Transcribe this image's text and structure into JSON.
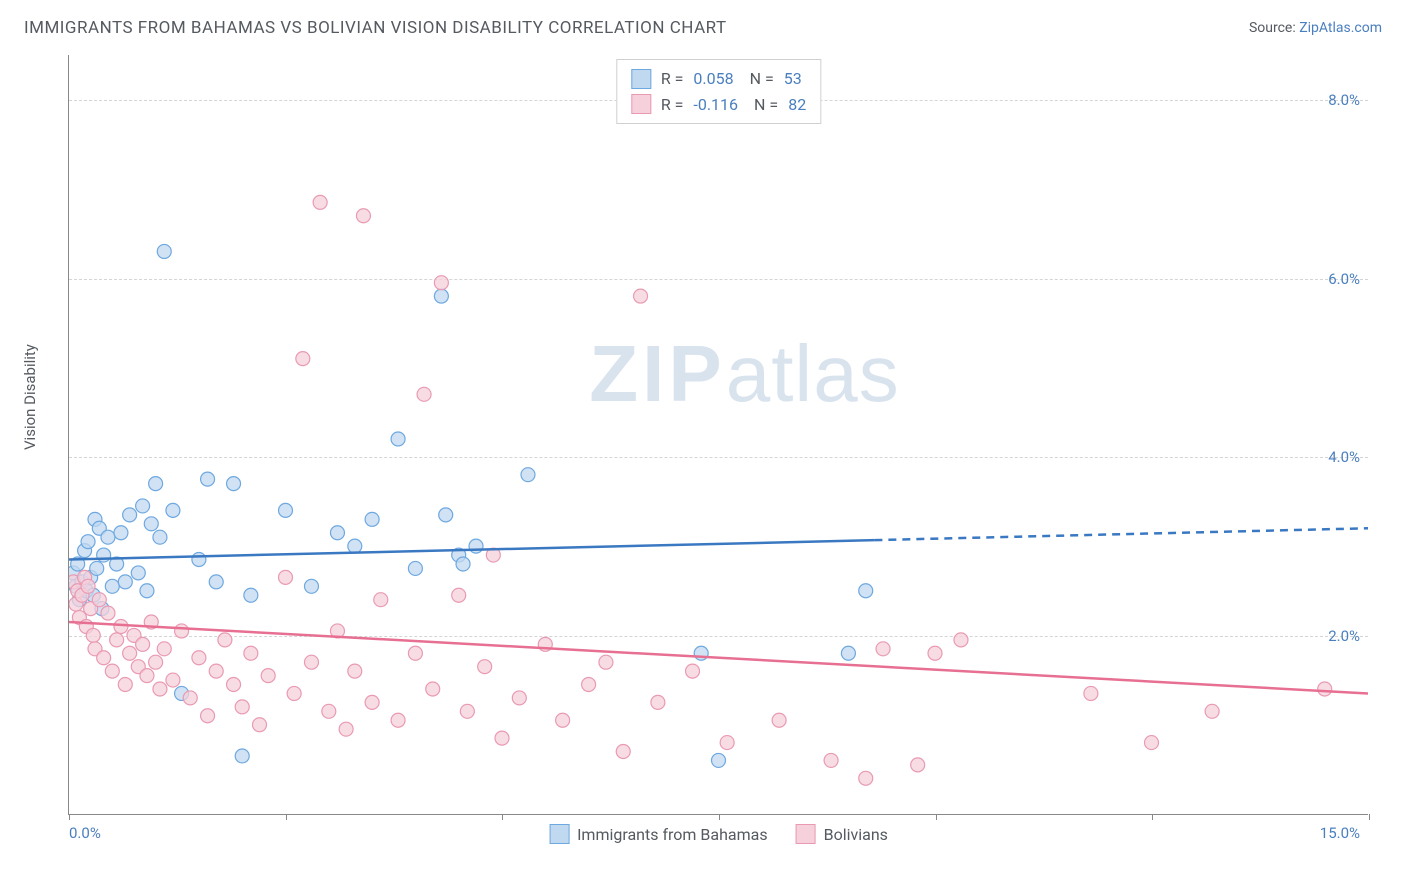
{
  "header": {
    "title": "IMMIGRANTS FROM BAHAMAS VS BOLIVIAN VISION DISABILITY CORRELATION CHART",
    "source_prefix": "Source: ",
    "source_link": "ZipAtlas.com"
  },
  "chart": {
    "ylabel": "Vision Disability",
    "xlim": [
      0,
      15
    ],
    "ylim": [
      0,
      8.5
    ],
    "xlabel_min": "0.0%",
    "xlabel_max": "15.0%",
    "yticks": [
      {
        "value": 2.0,
        "label": "2.0%"
      },
      {
        "value": 4.0,
        "label": "4.0%"
      },
      {
        "value": 6.0,
        "label": "6.0%"
      },
      {
        "value": 8.0,
        "label": "8.0%"
      }
    ],
    "xtick_values": [
      0,
      2.5,
      5,
      7.5,
      10,
      12.5,
      15
    ],
    "background_color": "#ffffff",
    "grid_color": "#d5d5d5",
    "axis_color": "#888888",
    "watermark_zip": "ZIP",
    "watermark_atlas": "atlas",
    "watermark_color": "#d9e3ee",
    "series": [
      {
        "name": "Immigrants from Bahamas",
        "short": "bahamas",
        "fill_color": "#c0d8f0",
        "stroke_color": "#6ea8e0",
        "line_color": "#3a78c2",
        "r_value": "0.058",
        "n_value": "53",
        "trend": {
          "y_start": 2.85,
          "y_end": 3.2,
          "solid_until_x": 9.3
        },
        "points": [
          [
            0.05,
            2.7
          ],
          [
            0.08,
            2.55
          ],
          [
            0.1,
            2.8
          ],
          [
            0.12,
            2.4
          ],
          [
            0.15,
            2.6
          ],
          [
            0.18,
            2.95
          ],
          [
            0.2,
            2.5
          ],
          [
            0.22,
            3.05
          ],
          [
            0.25,
            2.65
          ],
          [
            0.28,
            2.45
          ],
          [
            0.3,
            3.3
          ],
          [
            0.32,
            2.75
          ],
          [
            0.35,
            3.2
          ],
          [
            0.38,
            2.3
          ],
          [
            0.4,
            2.9
          ],
          [
            0.45,
            3.1
          ],
          [
            0.5,
            2.55
          ],
          [
            0.55,
            2.8
          ],
          [
            0.6,
            3.15
          ],
          [
            0.65,
            2.6
          ],
          [
            0.7,
            3.35
          ],
          [
            0.8,
            2.7
          ],
          [
            0.85,
            3.45
          ],
          [
            0.9,
            2.5
          ],
          [
            0.95,
            3.25
          ],
          [
            1.0,
            3.7
          ],
          [
            1.05,
            3.1
          ],
          [
            1.1,
            6.3
          ],
          [
            1.2,
            3.4
          ],
          [
            1.3,
            1.35
          ],
          [
            1.5,
            2.85
          ],
          [
            1.6,
            3.75
          ],
          [
            1.7,
            2.6
          ],
          [
            1.9,
            3.7
          ],
          [
            2.0,
            0.65
          ],
          [
            2.1,
            2.45
          ],
          [
            2.5,
            3.4
          ],
          [
            2.8,
            2.55
          ],
          [
            3.1,
            3.15
          ],
          [
            3.3,
            3.0
          ],
          [
            3.5,
            3.3
          ],
          [
            3.8,
            4.2
          ],
          [
            4.0,
            2.75
          ],
          [
            4.3,
            5.8
          ],
          [
            4.35,
            3.35
          ],
          [
            4.5,
            2.9
          ],
          [
            4.55,
            2.8
          ],
          [
            4.7,
            3.0
          ],
          [
            5.3,
            3.8
          ],
          [
            7.3,
            1.8
          ],
          [
            7.5,
            0.6
          ],
          [
            9.0,
            1.8
          ],
          [
            9.2,
            2.5
          ]
        ]
      },
      {
        "name": "Bolivians",
        "short": "bolivians",
        "fill_color": "#f6d0db",
        "stroke_color": "#e99ab2",
        "line_color": "#e76f92",
        "r_value": "-0.116",
        "n_value": "82",
        "trend": {
          "y_start": 2.15,
          "y_end": 1.35,
          "solid_until_x": 15.0
        },
        "points": [
          [
            0.05,
            2.6
          ],
          [
            0.08,
            2.35
          ],
          [
            0.1,
            2.5
          ],
          [
            0.12,
            2.2
          ],
          [
            0.15,
            2.45
          ],
          [
            0.18,
            2.65
          ],
          [
            0.2,
            2.1
          ],
          [
            0.22,
            2.55
          ],
          [
            0.25,
            2.3
          ],
          [
            0.28,
            2.0
          ],
          [
            0.3,
            1.85
          ],
          [
            0.35,
            2.4
          ],
          [
            0.4,
            1.75
          ],
          [
            0.45,
            2.25
          ],
          [
            0.5,
            1.6
          ],
          [
            0.55,
            1.95
          ],
          [
            0.6,
            2.1
          ],
          [
            0.65,
            1.45
          ],
          [
            0.7,
            1.8
          ],
          [
            0.75,
            2.0
          ],
          [
            0.8,
            1.65
          ],
          [
            0.85,
            1.9
          ],
          [
            0.9,
            1.55
          ],
          [
            0.95,
            2.15
          ],
          [
            1.0,
            1.7
          ],
          [
            1.05,
            1.4
          ],
          [
            1.1,
            1.85
          ],
          [
            1.2,
            1.5
          ],
          [
            1.3,
            2.05
          ],
          [
            1.4,
            1.3
          ],
          [
            1.5,
            1.75
          ],
          [
            1.6,
            1.1
          ],
          [
            1.7,
            1.6
          ],
          [
            1.8,
            1.95
          ],
          [
            1.9,
            1.45
          ],
          [
            2.0,
            1.2
          ],
          [
            2.1,
            1.8
          ],
          [
            2.2,
            1.0
          ],
          [
            2.3,
            1.55
          ],
          [
            2.5,
            2.65
          ],
          [
            2.6,
            1.35
          ],
          [
            2.7,
            5.1
          ],
          [
            2.8,
            1.7
          ],
          [
            2.9,
            6.85
          ],
          [
            3.0,
            1.15
          ],
          [
            3.1,
            2.05
          ],
          [
            3.2,
            0.95
          ],
          [
            3.3,
            1.6
          ],
          [
            3.4,
            6.7
          ],
          [
            3.5,
            1.25
          ],
          [
            3.6,
            2.4
          ],
          [
            3.8,
            1.05
          ],
          [
            4.0,
            1.8
          ],
          [
            4.1,
            4.7
          ],
          [
            4.2,
            1.4
          ],
          [
            4.3,
            5.95
          ],
          [
            4.5,
            2.45
          ],
          [
            4.6,
            1.15
          ],
          [
            4.8,
            1.65
          ],
          [
            4.9,
            2.9
          ],
          [
            5.0,
            0.85
          ],
          [
            5.2,
            1.3
          ],
          [
            5.5,
            1.9
          ],
          [
            5.7,
            1.05
          ],
          [
            6.0,
            1.45
          ],
          [
            6.2,
            1.7
          ],
          [
            6.4,
            0.7
          ],
          [
            6.6,
            5.8
          ],
          [
            6.8,
            1.25
          ],
          [
            7.2,
            1.6
          ],
          [
            7.6,
            0.8
          ],
          [
            8.2,
            1.05
          ],
          [
            8.8,
            0.6
          ],
          [
            9.2,
            0.4
          ],
          [
            9.4,
            1.85
          ],
          [
            9.8,
            0.55
          ],
          [
            10.0,
            1.8
          ],
          [
            10.3,
            1.95
          ],
          [
            11.8,
            1.35
          ],
          [
            12.5,
            0.8
          ],
          [
            13.2,
            1.15
          ],
          [
            14.5,
            1.4
          ]
        ]
      }
    ],
    "legend_top": {
      "r_label": "R =",
      "n_label": "N ="
    },
    "point_radius": 7,
    "point_stroke_width": 1.2,
    "trend_line_width": 2.5
  }
}
